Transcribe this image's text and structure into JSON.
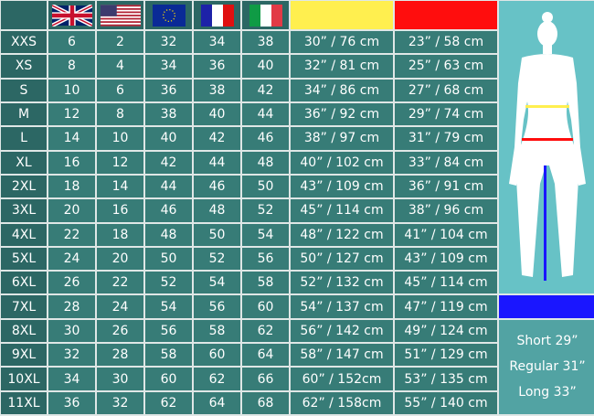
{
  "header": {
    "flags": [
      "uk-flag",
      "us-flag",
      "eu-flag",
      "france-flag",
      "italy-flag"
    ],
    "waist_color": "#ffef4f",
    "hip_color": "#ff0d0d",
    "inseam_color": "#1a16ff"
  },
  "rows": [
    {
      "size": "XXS",
      "uk": "6",
      "us": "2",
      "eu": "32",
      "fr": "34",
      "it": "38",
      "waist": "30” / 76 cm",
      "hip": "23” / 58 cm"
    },
    {
      "size": "XS",
      "uk": "8",
      "us": "4",
      "eu": "34",
      "fr": "36",
      "it": "40",
      "waist": "32” / 81 cm",
      "hip": "25” / 63 cm"
    },
    {
      "size": "S",
      "uk": "10",
      "us": "6",
      "eu": "36",
      "fr": "38",
      "it": "42",
      "waist": "34” / 86 cm",
      "hip": "27” / 68 cm"
    },
    {
      "size": "M",
      "uk": "12",
      "us": "8",
      "eu": "38",
      "fr": "40",
      "it": "44",
      "waist": "36” / 92 cm",
      "hip": "29” / 74 cm"
    },
    {
      "size": "L",
      "uk": "14",
      "us": "10",
      "eu": "40",
      "fr": "42",
      "it": "46",
      "waist": "38” / 97 cm",
      "hip": "31” / 79 cm"
    },
    {
      "size": "XL",
      "uk": "16",
      "us": "12",
      "eu": "42",
      "fr": "44",
      "it": "48",
      "waist": "40” / 102 cm",
      "hip": "33” / 84 cm"
    },
    {
      "size": "2XL",
      "uk": "18",
      "us": "14",
      "eu": "44",
      "fr": "46",
      "it": "50",
      "waist": "43” / 109 cm",
      "hip": "36” / 91 cm"
    },
    {
      "size": "3XL",
      "uk": "20",
      "us": "16",
      "eu": "46",
      "fr": "48",
      "it": "52",
      "waist": "45” / 114 cm",
      "hip": "38” / 96 cm"
    },
    {
      "size": "4XL",
      "uk": "22",
      "us": "18",
      "eu": "48",
      "fr": "50",
      "it": "54",
      "waist": "48” / 122 cm",
      "hip": "41” / 104 cm"
    },
    {
      "size": "5XL",
      "uk": "24",
      "us": "20",
      "eu": "50",
      "fr": "52",
      "it": "56",
      "waist": "50” / 127 cm",
      "hip": "43” / 109 cm"
    },
    {
      "size": "6XL",
      "uk": "26",
      "us": "22",
      "eu": "52",
      "fr": "54",
      "it": "58",
      "waist": "52” / 132 cm",
      "hip": "45” / 114 cm"
    },
    {
      "size": "7XL",
      "uk": "28",
      "us": "24",
      "eu": "54",
      "fr": "56",
      "it": "60",
      "waist": "54” / 137 cm",
      "hip": "47” / 119 cm"
    },
    {
      "size": "8XL",
      "uk": "30",
      "us": "26",
      "eu": "56",
      "fr": "58",
      "it": "62",
      "waist": "56” / 142 cm",
      "hip": "49” / 124 cm"
    },
    {
      "size": "9XL",
      "uk": "32",
      "us": "28",
      "eu": "58",
      "fr": "60",
      "it": "64",
      "waist": "58” / 147 cm",
      "hip": "51” / 129 cm"
    },
    {
      "size": "10XL",
      "uk": "34",
      "us": "30",
      "eu": "60",
      "fr": "62",
      "it": "66",
      "waist": "60” / 152cm",
      "hip": "53” / 135 cm"
    },
    {
      "size": "11XL",
      "uk": "36",
      "us": "32",
      "eu": "62",
      "fr": "64",
      "it": "68",
      "waist": "62” / 158cm",
      "hip": "55” / 140 cm"
    }
  ],
  "inseam": [
    "Short 29”",
    "Regular 31”",
    "Long 33”"
  ]
}
